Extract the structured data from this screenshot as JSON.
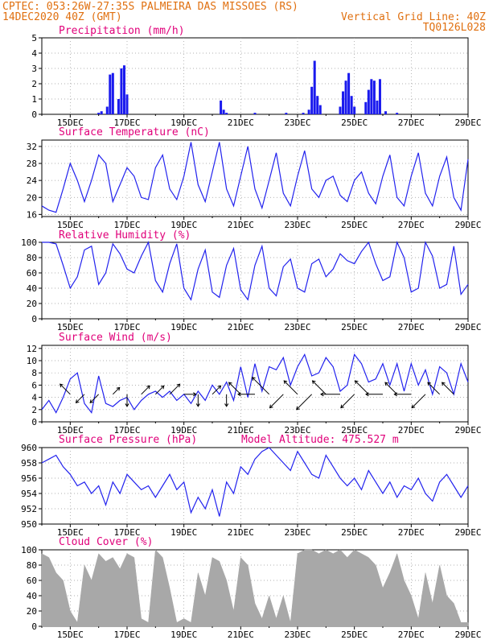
{
  "header": {
    "line1": "CPTEC:  053:26W-27:35S  PALMEIRA DAS MISSOES (RS)",
    "line2_left": "14DEC2020 40Z (GMT)",
    "line2_right": "Vertical Grid Line: 40Z",
    "line3_right": "TQ0126L028"
  },
  "colors": {
    "header": "#e07010",
    "panel_title": "#e0007a",
    "line": "#2222ee",
    "bar": "#1a1aee",
    "cloud": "#a8a8a8",
    "grid": "#999999"
  },
  "chart_data": [
    {
      "type": "bar",
      "title": "Precipitation (mm/h)",
      "x_ticks": [
        "15DEC",
        "17DEC",
        "19DEC",
        "21DEC",
        "23DEC",
        "25DEC",
        "27DEC",
        "29DEC"
      ],
      "xlim": [
        14.0,
        29.0
      ],
      "ylim": [
        0,
        5
      ],
      "y_ticks": [
        0,
        1,
        2,
        3,
        4,
        5
      ],
      "grid": true,
      "x": [
        16.0,
        16.1,
        16.3,
        16.4,
        16.5,
        16.7,
        16.8,
        16.9,
        17.0,
        20.3,
        20.4,
        20.5,
        21.5,
        22.6,
        23.2,
        23.4,
        23.5,
        23.6,
        23.7,
        23.8,
        24.5,
        24.6,
        24.7,
        24.8,
        24.9,
        25.0,
        25.4,
        25.5,
        25.6,
        25.7,
        25.8,
        25.9,
        26.1,
        26.5
      ],
      "values": [
        0.1,
        0.2,
        0.5,
        2.6,
        2.7,
        1.0,
        3.0,
        3.2,
        1.3,
        0.9,
        0.3,
        0.1,
        0.1,
        0.1,
        0.1,
        0.3,
        1.8,
        3.5,
        1.2,
        0.6,
        0.5,
        1.5,
        2.2,
        2.7,
        1.2,
        0.5,
        0.8,
        1.6,
        2.3,
        2.2,
        0.9,
        2.3,
        0.2,
        0.1
      ]
    },
    {
      "type": "line",
      "title": "Surface Temperature (nC)",
      "x_ticks": [
        "15DEC",
        "17DEC",
        "19DEC",
        "21DEC",
        "23DEC",
        "25DEC",
        "27DEC",
        "29DEC"
      ],
      "xlim": [
        14.0,
        29.0
      ],
      "ylim": [
        15.5,
        33.5
      ],
      "y_ticks": [
        16,
        20,
        24,
        28,
        32
      ],
      "grid": true,
      "x": [
        14.0,
        14.25,
        14.5,
        14.75,
        15.0,
        15.25,
        15.5,
        15.75,
        16.0,
        16.25,
        16.5,
        16.75,
        17.0,
        17.25,
        17.5,
        17.75,
        18.0,
        18.25,
        18.5,
        18.75,
        19.0,
        19.25,
        19.5,
        19.75,
        20.0,
        20.25,
        20.5,
        20.75,
        21.0,
        21.25,
        21.5,
        21.75,
        22.0,
        22.25,
        22.5,
        22.75,
        23.0,
        23.25,
        23.5,
        23.75,
        24.0,
        24.25,
        24.5,
        24.75,
        25.0,
        25.25,
        25.5,
        25.75,
        26.0,
        26.25,
        26.5,
        26.75,
        27.0,
        27.25,
        27.5,
        27.75,
        28.0,
        28.25,
        28.5,
        28.75,
        29.0
      ],
      "values": [
        18.0,
        17.0,
        16.5,
        22.0,
        28.0,
        24.0,
        19.0,
        24.0,
        30.0,
        28.0,
        19.0,
        23.0,
        27.0,
        25.0,
        20.0,
        19.5,
        27.0,
        30.0,
        22.0,
        19.5,
        25.0,
        33.0,
        23.0,
        19.0,
        26.0,
        33.0,
        22.0,
        18.0,
        25.0,
        32.0,
        22.0,
        17.5,
        24.0,
        30.5,
        21.0,
        18.0,
        25.0,
        31.0,
        22.0,
        20.0,
        24.0,
        25.0,
        20.5,
        19.0,
        24.0,
        26.0,
        21.0,
        18.5,
        25.0,
        30.0,
        20.0,
        18.0,
        25.0,
        30.5,
        21.0,
        18.0,
        25.0,
        29.5,
        20.0,
        17.0,
        29.0
      ]
    },
    {
      "type": "line",
      "title": "Relative Humidity (%)",
      "x_ticks": [
        "15DEC",
        "17DEC",
        "19DEC",
        "21DEC",
        "23DEC",
        "25DEC",
        "27DEC",
        "29DEC"
      ],
      "xlim": [
        14.0,
        29.0
      ],
      "ylim": [
        0,
        100
      ],
      "y_ticks": [
        0,
        20,
        40,
        60,
        80,
        100
      ],
      "grid": true,
      "x": [
        14.0,
        14.25,
        14.5,
        14.75,
        15.0,
        15.25,
        15.5,
        15.75,
        16.0,
        16.25,
        16.5,
        16.75,
        17.0,
        17.25,
        17.5,
        17.75,
        18.0,
        18.25,
        18.5,
        18.75,
        19.0,
        19.25,
        19.5,
        19.75,
        20.0,
        20.25,
        20.5,
        20.75,
        21.0,
        21.25,
        21.5,
        21.75,
        22.0,
        22.25,
        22.5,
        22.75,
        23.0,
        23.25,
        23.5,
        23.75,
        24.0,
        24.25,
        24.5,
        24.75,
        25.0,
        25.25,
        25.5,
        25.75,
        26.0,
        26.25,
        26.5,
        26.75,
        27.0,
        27.25,
        27.5,
        27.75,
        28.0,
        28.25,
        28.5,
        28.75,
        29.0
      ],
      "values": [
        100,
        100,
        98,
        70,
        40,
        55,
        90,
        95,
        45,
        60,
        98,
        85,
        65,
        60,
        82,
        100,
        50,
        35,
        72,
        98,
        40,
        25,
        65,
        90,
        35,
        28,
        70,
        92,
        38,
        25,
        70,
        95,
        40,
        30,
        68,
        78,
        40,
        35,
        72,
        78,
        55,
        65,
        85,
        76,
        72,
        88,
        100,
        72,
        50,
        55,
        100,
        80,
        35,
        40,
        100,
        82,
        40,
        45,
        95,
        32,
        45
      ]
    },
    {
      "type": "line",
      "title": "Surface Wind (m/s)",
      "x_ticks": [
        "15DEC",
        "17DEC",
        "19DEC",
        "21DEC",
        "23DEC",
        "25DEC",
        "27DEC",
        "29DEC"
      ],
      "xlim": [
        14.0,
        29.0
      ],
      "ylim": [
        0,
        12.5
      ],
      "y_ticks": [
        0,
        2,
        4,
        6,
        8,
        10,
        12
      ],
      "grid": true,
      "x": [
        14.0,
        14.25,
        14.5,
        14.75,
        15.0,
        15.25,
        15.5,
        15.75,
        16.0,
        16.25,
        16.5,
        16.75,
        17.0,
        17.25,
        17.5,
        17.75,
        18.0,
        18.25,
        18.5,
        18.75,
        19.0,
        19.25,
        19.5,
        19.75,
        20.0,
        20.25,
        20.5,
        20.75,
        21.0,
        21.25,
        21.5,
        21.75,
        22.0,
        22.25,
        22.5,
        22.75,
        23.0,
        23.25,
        23.5,
        23.75,
        24.0,
        24.25,
        24.5,
        24.75,
        25.0,
        25.25,
        25.5,
        25.75,
        26.0,
        26.25,
        26.5,
        26.75,
        27.0,
        27.25,
        27.5,
        27.75,
        28.0,
        28.25,
        28.5,
        28.75,
        29.0
      ],
      "values": [
        2.0,
        3.5,
        1.5,
        4.0,
        7.0,
        8.0,
        3.0,
        1.5,
        7.5,
        3.0,
        2.5,
        3.5,
        4.0,
        2.0,
        3.5,
        4.5,
        5.0,
        4.0,
        5.0,
        3.5,
        4.5,
        3.0,
        5.0,
        3.5,
        6.0,
        4.5,
        6.5,
        3.5,
        9.0,
        4.0,
        9.5,
        5.0,
        9.0,
        8.5,
        10.5,
        6.0,
        9.0,
        11.0,
        7.5,
        8.0,
        10.5,
        9.0,
        5.0,
        6.0,
        11.0,
        9.5,
        6.5,
        7.0,
        9.5,
        6.0,
        9.5,
        5.0,
        9.5,
        6.0,
        8.5,
        4.5,
        9.0,
        8.0,
        4.5,
        9.5,
        6.5
      ],
      "vectors": [
        {
          "x": 15.0,
          "speed": 5,
          "dir": "NW"
        },
        {
          "x": 15.5,
          "speed": 4,
          "dir": "SW"
        },
        {
          "x": 16.0,
          "speed": 4,
          "dir": "SW"
        },
        {
          "x": 16.5,
          "speed": 3,
          "dir": "NE"
        },
        {
          "x": 17.0,
          "speed": 4,
          "dir": "S"
        },
        {
          "x": 17.5,
          "speed": 4,
          "dir": "NE"
        },
        {
          "x": 18.0,
          "speed": 4,
          "dir": "NE"
        },
        {
          "x": 18.5,
          "speed": 5,
          "dir": "NE"
        },
        {
          "x": 19.0,
          "speed": 4,
          "dir": "E"
        },
        {
          "x": 19.5,
          "speed": 4,
          "dir": "S"
        },
        {
          "x": 20.0,
          "speed": 4,
          "dir": "NE"
        },
        {
          "x": 20.5,
          "speed": 4,
          "dir": "S"
        },
        {
          "x": 21.0,
          "speed": 6,
          "dir": "NW"
        },
        {
          "x": 21.5,
          "speed": 6,
          "dir": "W"
        },
        {
          "x": 22.0,
          "speed": 9,
          "dir": "NW"
        },
        {
          "x": 22.5,
          "speed": 7,
          "dir": "SW"
        },
        {
          "x": 23.0,
          "speed": 7,
          "dir": "NW"
        },
        {
          "x": 23.5,
          "speed": 8,
          "dir": "SW"
        },
        {
          "x": 24.0,
          "speed": 7,
          "dir": "NW"
        },
        {
          "x": 24.5,
          "speed": 7,
          "dir": "W"
        },
        {
          "x": 25.0,
          "speed": 7,
          "dir": "SW"
        },
        {
          "x": 25.5,
          "speed": 7,
          "dir": "NW"
        },
        {
          "x": 26.0,
          "speed": 6,
          "dir": "W"
        },
        {
          "x": 26.5,
          "speed": 6,
          "dir": "NW"
        },
        {
          "x": 27.0,
          "speed": 6,
          "dir": "W"
        },
        {
          "x": 27.5,
          "speed": 7,
          "dir": "SW"
        },
        {
          "x": 28.0,
          "speed": 6,
          "dir": "NW"
        },
        {
          "x": 28.5,
          "speed": 6,
          "dir": "NW"
        }
      ]
    },
    {
      "type": "line",
      "title": "Surface Pressure (hPa)",
      "subtitle": "Model Altitude: 475.527 m",
      "x_ticks": [
        "15DEC",
        "17DEC",
        "19DEC",
        "21DEC",
        "23DEC",
        "25DEC",
        "27DEC",
        "29DEC"
      ],
      "xlim": [
        14.0,
        29.0
      ],
      "ylim": [
        950,
        960
      ],
      "y_ticks": [
        950,
        952,
        954,
        956,
        958,
        960
      ],
      "grid": true,
      "x": [
        14.0,
        14.25,
        14.5,
        14.75,
        15.0,
        15.25,
        15.5,
        15.75,
        16.0,
        16.25,
        16.5,
        16.75,
        17.0,
        17.25,
        17.5,
        17.75,
        18.0,
        18.25,
        18.5,
        18.75,
        19.0,
        19.25,
        19.5,
        19.75,
        20.0,
        20.25,
        20.5,
        20.75,
        21.0,
        21.25,
        21.5,
        21.75,
        22.0,
        22.25,
        22.5,
        22.75,
        23.0,
        23.25,
        23.5,
        23.75,
        24.0,
        24.25,
        24.5,
        24.75,
        25.0,
        25.25,
        25.5,
        25.75,
        26.0,
        26.25,
        26.5,
        26.75,
        27.0,
        27.25,
        27.5,
        27.75,
        28.0,
        28.25,
        28.5,
        28.75,
        29.0
      ],
      "values": [
        958.0,
        958.5,
        959.0,
        957.5,
        956.5,
        955.0,
        955.5,
        954.0,
        955.0,
        952.5,
        955.5,
        954.0,
        956.5,
        955.5,
        954.5,
        955.0,
        953.5,
        955.0,
        956.5,
        954.5,
        955.5,
        951.5,
        953.5,
        952.0,
        954.5,
        951.0,
        955.5,
        954.0,
        957.5,
        956.5,
        958.5,
        959.5,
        960.0,
        959.0,
        958.0,
        957.0,
        959.5,
        958.0,
        956.5,
        956.0,
        959.0,
        957.5,
        956.0,
        955.0,
        956.0,
        954.5,
        957.0,
        955.5,
        954.0,
        955.5,
        953.5,
        955.0,
        954.5,
        956.0,
        954.0,
        953.0,
        955.5,
        956.5,
        955.0,
        953.5,
        955.0
      ]
    },
    {
      "type": "area",
      "title": "Cloud Cover (%)",
      "x_ticks": [
        "15DEC",
        "17DEC",
        "19DEC",
        "21DEC",
        "23DEC",
        "25DEC",
        "27DEC",
        "29DEC"
      ],
      "xlim": [
        14.0,
        29.0
      ],
      "ylim": [
        0,
        100
      ],
      "y_ticks": [
        0,
        20,
        40,
        60,
        80,
        100
      ],
      "grid": true,
      "x": [
        14.0,
        14.25,
        14.5,
        14.75,
        15.0,
        15.25,
        15.5,
        15.75,
        16.0,
        16.25,
        16.5,
        16.75,
        17.0,
        17.25,
        17.5,
        17.75,
        18.0,
        18.25,
        18.5,
        18.75,
        19.0,
        19.25,
        19.5,
        19.75,
        20.0,
        20.25,
        20.5,
        20.75,
        21.0,
        21.25,
        21.5,
        21.75,
        22.0,
        22.25,
        22.5,
        22.75,
        23.0,
        23.25,
        23.5,
        23.75,
        24.0,
        24.25,
        24.5,
        24.75,
        25.0,
        25.25,
        25.5,
        25.75,
        26.0,
        26.25,
        26.5,
        26.75,
        27.0,
        27.25,
        27.5,
        27.75,
        28.0,
        28.25,
        28.5,
        28.75,
        29.0
      ],
      "values": [
        95,
        90,
        70,
        60,
        20,
        5,
        80,
        60,
        95,
        85,
        90,
        75,
        95,
        90,
        10,
        5,
        100,
        90,
        50,
        5,
        10,
        5,
        70,
        40,
        90,
        85,
        60,
        20,
        90,
        80,
        30,
        10,
        40,
        10,
        40,
        5,
        95,
        100,
        100,
        95,
        100,
        95,
        100,
        90,
        100,
        95,
        90,
        80,
        50,
        70,
        95,
        60,
        40,
        10,
        70,
        30,
        80,
        40,
        30,
        5,
        5
      ]
    }
  ]
}
